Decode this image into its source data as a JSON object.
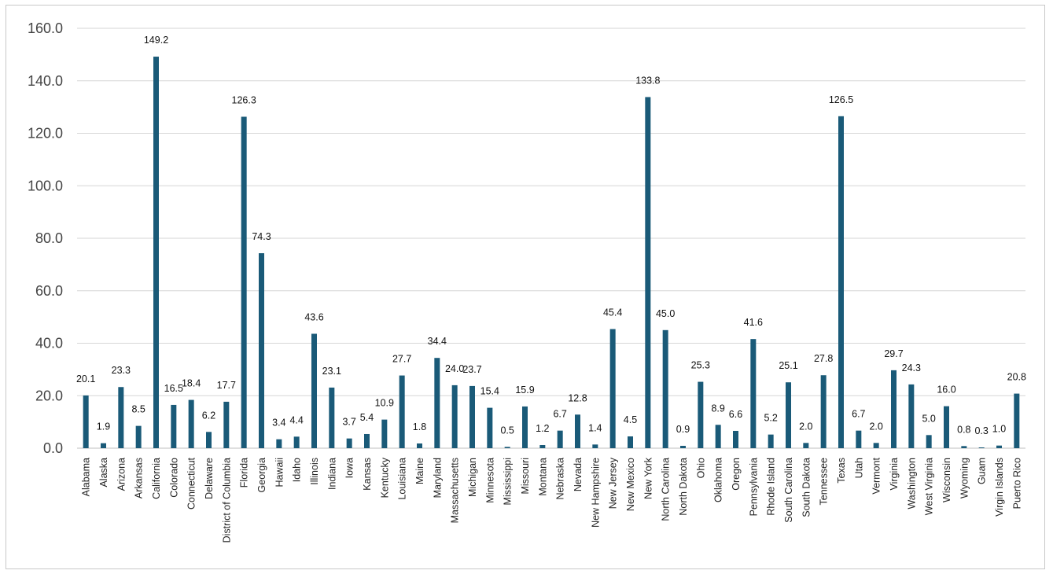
{
  "chart_data": {
    "type": "bar",
    "title": "",
    "xlabel": "",
    "ylabel": "",
    "ylim": [
      0,
      160
    ],
    "ytick_step": 20,
    "ytick_decimals": 1,
    "grid": true,
    "legend": "none",
    "bar_color": "#1a5a78",
    "categories": [
      "Alabama",
      "Alaska",
      "Arizona",
      "Arkansas",
      "California",
      "Colorado",
      "Connecticut",
      "Delaware",
      "District of Columbia",
      "Florida",
      "Georgia",
      "Hawaii",
      "Idaho",
      "Illinois",
      "Indiana",
      "Iowa",
      "Kansas",
      "Kentucky",
      "Louisiana",
      "Maine",
      "Maryland",
      "Massachusetts",
      "Michigan",
      "Minnesota",
      "Mississippi",
      "Missouri",
      "Montana",
      "Nebraska",
      "Nevada",
      "New Hampshire",
      "New Jersey",
      "New Mexico",
      "New York",
      "North Carolina",
      "North Dakota",
      "Ohio",
      "Oklahoma",
      "Oregon",
      "Pennsylvania",
      "Rhode Island",
      "South Carolina",
      "South Dakota",
      "Tennessee",
      "Texas",
      "Utah",
      "Vermont",
      "Virginia",
      "Washington",
      "West Virginia",
      "Wisconsin",
      "Wyoming",
      "Guam",
      "Virgin Islands",
      "Puerto Rico"
    ],
    "values": [
      20.1,
      1.9,
      23.3,
      8.5,
      149.2,
      16.5,
      18.4,
      6.2,
      17.7,
      126.3,
      74.3,
      3.4,
      4.4,
      43.6,
      23.1,
      3.7,
      5.4,
      10.9,
      27.7,
      1.8,
      34.4,
      24.0,
      23.7,
      15.4,
      0.5,
      15.9,
      1.2,
      6.7,
      12.8,
      1.4,
      45.4,
      4.5,
      133.8,
      45.0,
      0.9,
      25.3,
      8.9,
      6.6,
      41.6,
      5.2,
      25.1,
      2.0,
      27.8,
      126.5,
      6.7,
      2.0,
      29.7,
      24.3,
      5.0,
      16.0,
      0.8,
      0.3,
      1.0,
      20.8
    ],
    "data_labels": [
      "20.1",
      "1.9",
      "23.3",
      "8.5",
      "149.2",
      "16.5",
      "18.4",
      "6.2",
      "17.7",
      "126.3",
      "74.3",
      "3.4",
      "4.4",
      "43.6",
      "23.1",
      "3.7",
      "5.4",
      "10.9",
      "27.7",
      "1.8",
      "34.4",
      "24.0",
      "23.7",
      "15.4",
      "0.5",
      "15.9",
      "1.2",
      "6.7",
      "12.8",
      "1.4",
      "45.4",
      "4.5",
      "133.8",
      "45.0",
      "0.9",
      "25.3",
      "8.9",
      "6.6",
      "41.6",
      "5.2",
      "25.1",
      "2.0",
      "27.8",
      "126.5",
      "6.7",
      "2.0",
      "29.7",
      "24.3",
      "5.0",
      "16.0",
      "0.8",
      "0.3",
      "1.0",
      "20.8"
    ]
  }
}
